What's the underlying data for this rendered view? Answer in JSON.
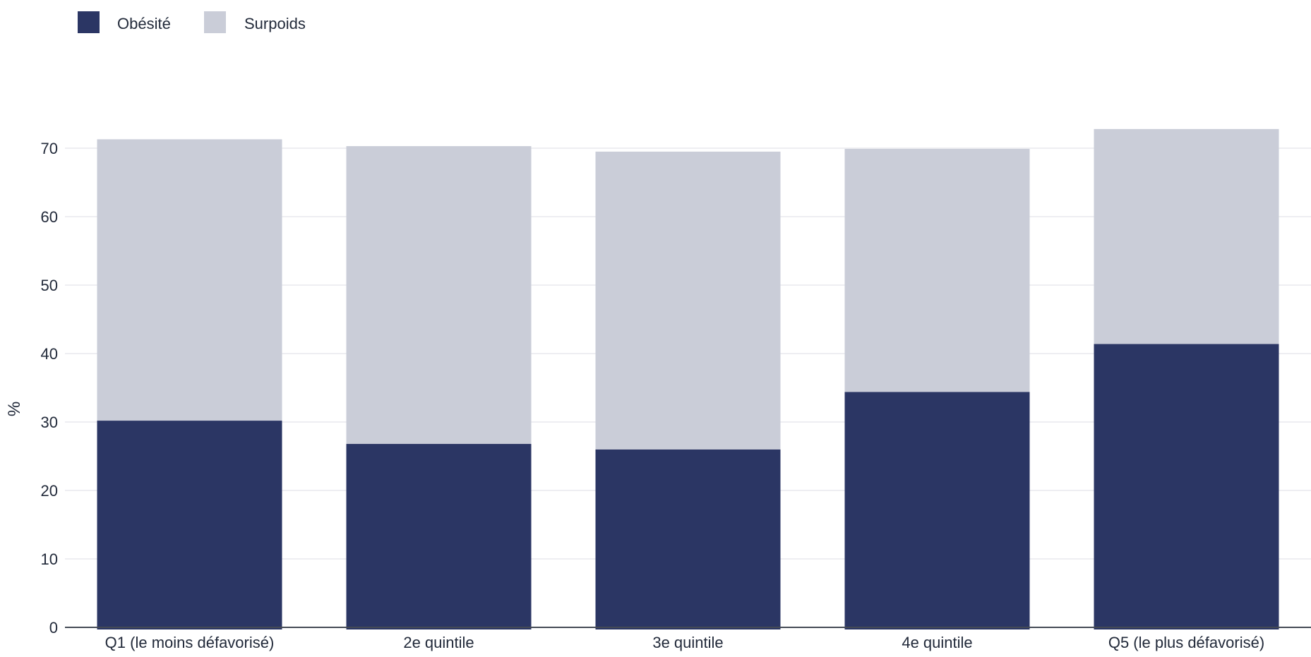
{
  "chart_data": {
    "type": "bar",
    "stacked": true,
    "categories": [
      "Q1 (le moins défavorisé)",
      "2e quintile",
      "3e quintile",
      "4e quintile",
      "Q5 (le plus défavorisé)"
    ],
    "series": [
      {
        "name": "Obésité",
        "color": "#2b3664",
        "values": [
          30.2,
          26.8,
          26.0,
          34.4,
          41.4
        ]
      },
      {
        "name": "Surpoids",
        "color": "#cacdd8",
        "values": [
          41.1,
          43.5,
          43.5,
          35.5,
          31.4
        ]
      }
    ],
    "ylabel": "%",
    "ylim": [
      0,
      80
    ],
    "yticks": [
      0,
      10,
      20,
      30,
      40,
      50,
      60,
      70
    ],
    "grid": true,
    "legend_position": "top-left"
  }
}
